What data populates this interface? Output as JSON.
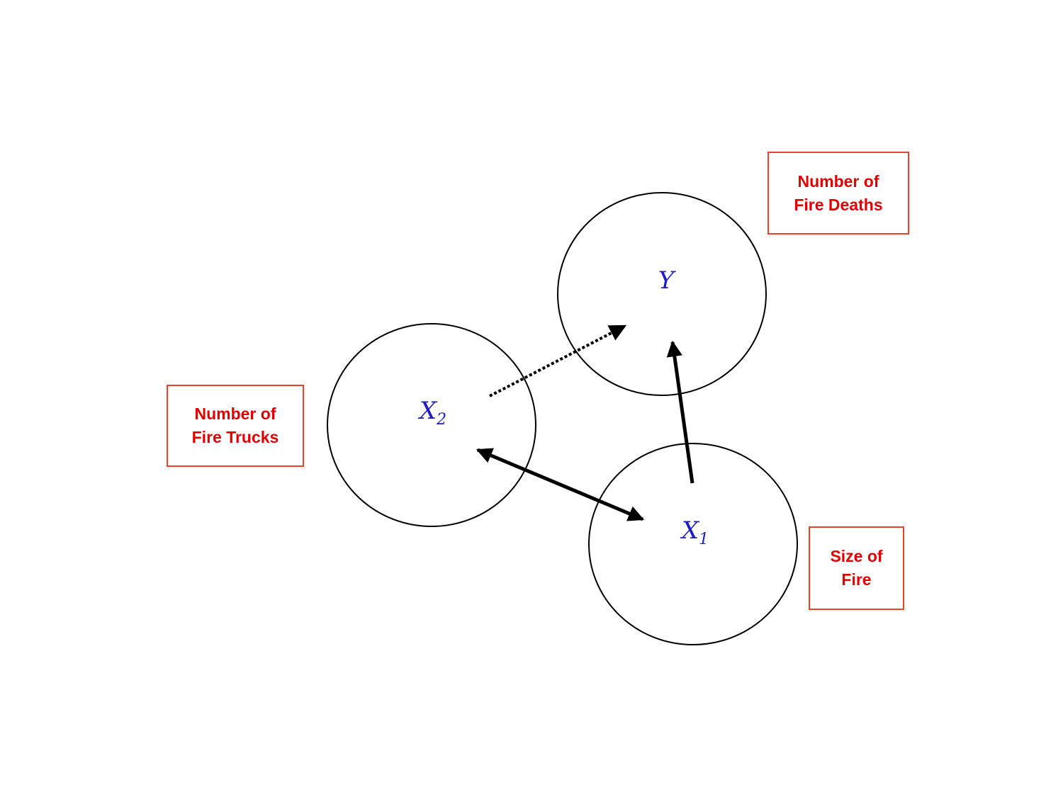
{
  "nodes": {
    "y": {
      "base": "Y",
      "sub": ""
    },
    "x2": {
      "base": "X",
      "sub": "2"
    },
    "x1": {
      "base": "X",
      "sub": "1"
    }
  },
  "labels": {
    "deaths": "Number of\nFire Deaths",
    "trucks": "Number of\nFire Trucks",
    "size": "Size of\nFire"
  },
  "edges": [
    {
      "from": "x1",
      "to": "y",
      "style": "solid",
      "direction": "forward"
    },
    {
      "from": "x2",
      "to": "x1",
      "style": "solid",
      "direction": "bidirectional"
    },
    {
      "from": "x2",
      "to": "y",
      "style": "dotted",
      "direction": "forward"
    }
  ],
  "colors": {
    "node_text": "#1f1fbf",
    "label_text": "#e00000",
    "label_border": "#e8422a",
    "lines": "#000000"
  }
}
